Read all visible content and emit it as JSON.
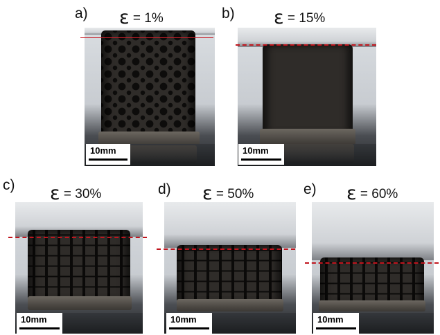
{
  "panels": [
    {
      "letter": "a)",
      "strain_prefix": "ε",
      "strain_value": "= 1%",
      "scale_label": "10mm"
    },
    {
      "letter": "b)",
      "strain_prefix": "ε",
      "strain_value": "= 15%",
      "scale_label": "10mm"
    },
    {
      "letter": "c)",
      "strain_prefix": "ε",
      "strain_value": "= 30%",
      "scale_label": "10mm"
    },
    {
      "letter": "d)",
      "strain_prefix": "ε",
      "strain_value": "= 50%",
      "scale_label": "10mm"
    },
    {
      "letter": "e)",
      "strain_prefix": "ε",
      "strain_value": "= 60%",
      "scale_label": "10mm"
    }
  ],
  "colors": {
    "reference_line": "#c0141d",
    "specimen": "#2f2c29",
    "background": "#ffffff"
  }
}
